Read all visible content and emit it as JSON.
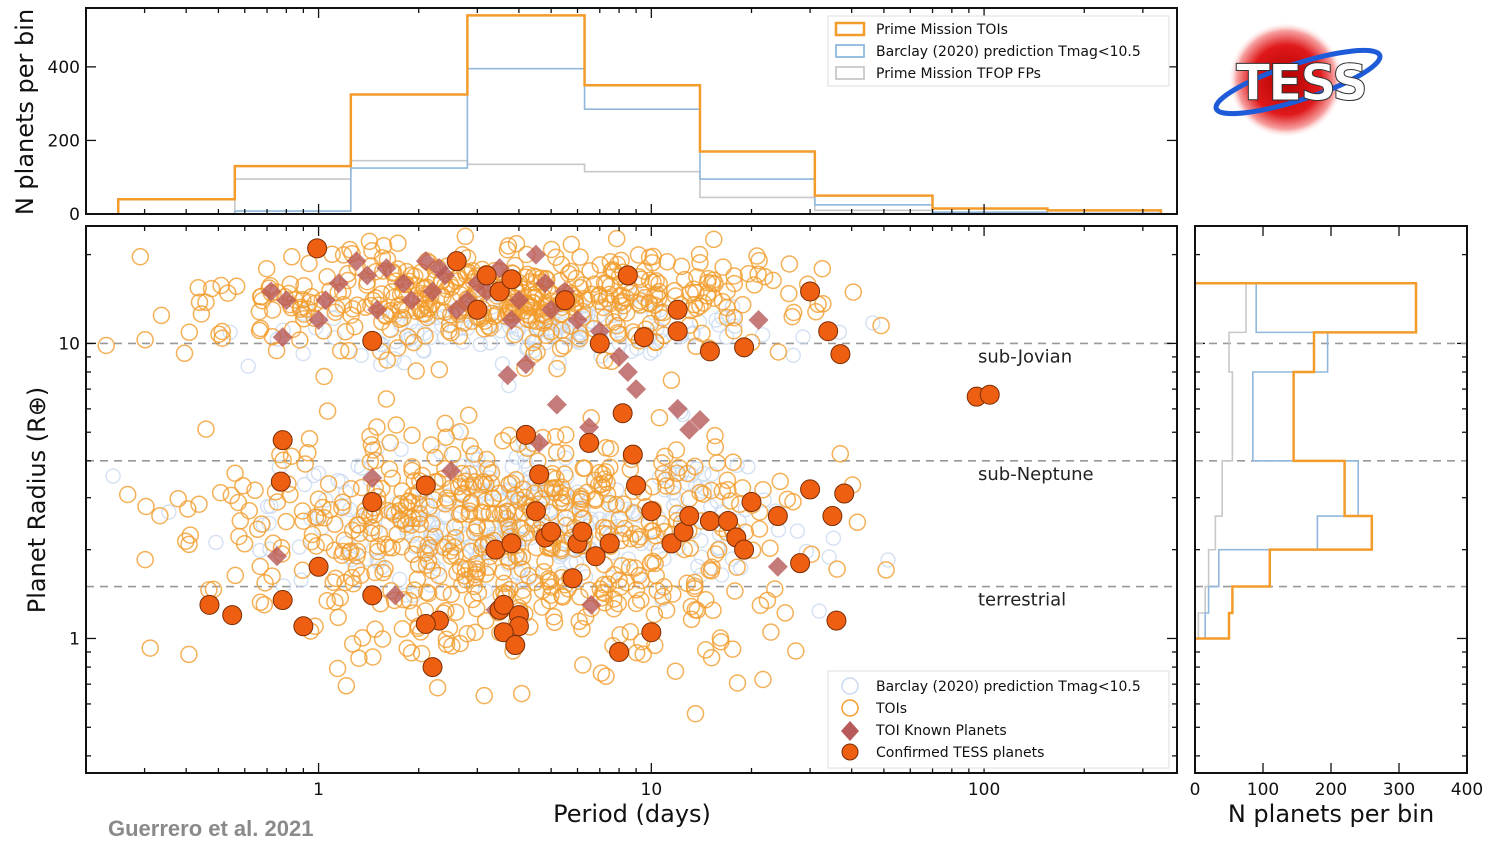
{
  "logo": {
    "text": "TESS"
  },
  "citation": "Guerrero et al. 2021",
  "colors": {
    "toi": "#f39c2c",
    "barclay": "#8fb8dc",
    "barclay_points": "#c9daf0",
    "tfop": "#c8c8c8",
    "known": "#b85a5a",
    "confirmed": "#ee5f12",
    "dashed": "#999999"
  },
  "chart_data": [
    {
      "type": "histogram",
      "panel": "top",
      "xlabel": "",
      "ylabel": "N planets per bin",
      "xscale": "log",
      "xlim": [
        0.2,
        380
      ],
      "ylim": [
        0,
        560
      ],
      "yticks": [
        0,
        200,
        400
      ],
      "legend": {
        "placement": "top-right",
        "entries": [
          "Prime Mission TOIs",
          "Barclay (2020) prediction Tmag<10.5",
          "Prime Mission TFOP FPs"
        ]
      },
      "bin_edges": [
        0.25,
        0.56,
        1.25,
        2.8,
        6.3,
        14,
        31,
        70,
        155,
        340
      ],
      "series": [
        {
          "name": "Prime Mission TOIs",
          "values": [
            40,
            130,
            325,
            540,
            350,
            170,
            50,
            15,
            10
          ]
        },
        {
          "name": "Barclay (2020) prediction Tmag<10.5",
          "values": [
            0,
            8,
            125,
            395,
            285,
            95,
            25,
            5,
            2
          ]
        },
        {
          "name": "Prime Mission TFOP FPs",
          "values": [
            0,
            95,
            145,
            135,
            115,
            45,
            10,
            3,
            0
          ]
        }
      ]
    },
    {
      "type": "scatter",
      "panel": "main",
      "xlabel": "Period (days)",
      "ylabel": "Planet Radius (R⊕)",
      "xscale": "log",
      "yscale": "log",
      "xlim": [
        0.2,
        380
      ],
      "ylim": [
        0.35,
        25
      ],
      "xticks": [
        1,
        10,
        100
      ],
      "yticks": [
        1,
        10
      ],
      "hlines": [
        {
          "y": 10,
          "label": "sub-Jovian"
        },
        {
          "y": 4,
          "label": "sub-Neptune"
        },
        {
          "y": 1.5,
          "label": "terrestrial"
        }
      ],
      "legend": {
        "placement": "bottom-right",
        "entries": [
          "Barclay (2020) prediction Tmag<10.5",
          "TOIs",
          "TOI Known Planets",
          "Confirmed TESS planets"
        ]
      },
      "series": [
        {
          "name": "Barclay (2020) prediction Tmag<10.5",
          "marker": "open-circle",
          "x": [],
          "y": [],
          "distribution": {
            "count": 420,
            "logP_mean": 0.65,
            "logP_sd": 0.38,
            "clusters": [
              {
                "logR_mean": 1.05,
                "logR_sd": 0.05,
                "weight": 0.35
              },
              {
                "logR_mean": 0.4,
                "logR_sd": 0.12,
                "weight": 0.65
              }
            ]
          }
        },
        {
          "name": "TOIs",
          "marker": "open-circle",
          "x": [],
          "y": [],
          "distribution": {
            "count": 1100,
            "logP_mean": 0.55,
            "logP_sd": 0.42,
            "clusters": [
              {
                "logR_mean": 1.15,
                "logR_sd": 0.09,
                "weight": 0.42
              },
              {
                "logR_mean": 0.42,
                "logR_sd": 0.14,
                "weight": 0.46
              },
              {
                "logR_mean": 0.1,
                "logR_sd": 0.12,
                "weight": 0.12
              }
            ]
          }
        },
        {
          "name": "TOI Known Planets",
          "marker": "diamond",
          "x": [
            0.72,
            0.8,
            0.78,
            1.0,
            1.05,
            1.15,
            1.3,
            1.4,
            1.5,
            1.6,
            1.8,
            1.9,
            2.1,
            2.2,
            2.4,
            2.6,
            2.8,
            3.0,
            3.2,
            3.5,
            3.8,
            4.0,
            4.5,
            4.8,
            5.0,
            5.5,
            6.0,
            7.0,
            8.0,
            8.5,
            9.0,
            12.0,
            14.0,
            21.0,
            1.45,
            0.75,
            3.7,
            5.2,
            4.6,
            2.5,
            6.5,
            13.0,
            24.0,
            6.6,
            3.4,
            1.7,
            2.3,
            4.2
          ],
          "y": [
            15,
            14,
            10.5,
            12,
            14,
            16,
            19,
            17,
            13,
            18,
            16,
            14,
            19,
            15,
            17,
            13,
            14,
            16,
            15,
            18,
            12,
            14,
            20,
            16,
            13,
            15,
            12,
            11,
            9,
            8,
            7,
            6,
            5.5,
            12,
            3.5,
            1.9,
            7.8,
            6.2,
            4.6,
            3.7,
            5.2,
            5.1,
            1.75,
            1.3,
            1.25,
            1.4,
            18,
            8.5
          ]
        },
        {
          "name": "Confirmed TESS planets",
          "marker": "filled-circle",
          "x": [
            0.99,
            0.78,
            0.77,
            1.45,
            0.47,
            0.55,
            0.78,
            0.9,
            1.0,
            1.45,
            1.45,
            2.1,
            2.3,
            2.1,
            2.2,
            3.2,
            3.5,
            3.8,
            4.2,
            4.6,
            5.5,
            6.5,
            7.0,
            8.5,
            9.5,
            12,
            12,
            15,
            19,
            30,
            34,
            37,
            95,
            104,
            3.5,
            3.6,
            4.0,
            3.4,
            3.8,
            4.5,
            4.8,
            5.0,
            5.8,
            6.0,
            6.2,
            6.8,
            7.5,
            8.2,
            8.8,
            9.0,
            10.0,
            11.5,
            12.5,
            13.0,
            15.0,
            17.0,
            18.0,
            19.0,
            20.0,
            24.0,
            28.0,
            30.0,
            35.0,
            38.0,
            4.0,
            3.6,
            3.9,
            8.0,
            10.0,
            36.0,
            2.6,
            3.0
          ],
          "y": [
            21,
            4.7,
            3.4,
            10.2,
            1.3,
            1.2,
            1.35,
            1.1,
            1.75,
            2.9,
            1.4,
            3.3,
            1.15,
            1.12,
            0.8,
            17,
            15,
            16.5,
            4.9,
            3.6,
            14,
            4.6,
            10,
            17,
            10.5,
            13,
            11,
            9.4,
            9.7,
            15,
            11,
            9.2,
            6.6,
            6.7,
            1.25,
            1.3,
            1.2,
            2.0,
            2.1,
            2.7,
            2.2,
            2.3,
            1.6,
            2.1,
            2.3,
            1.9,
            2.1,
            5.8,
            4.2,
            3.3,
            2.7,
            2.1,
            2.3,
            2.6,
            2.5,
            2.5,
            2.2,
            2.0,
            2.9,
            2.6,
            1.8,
            3.2,
            2.6,
            3.1,
            1.1,
            1.05,
            0.95,
            0.9,
            1.05,
            1.15,
            19,
            13
          ]
        }
      ]
    },
    {
      "type": "histogram",
      "panel": "right",
      "orientation": "horizontal",
      "xlabel": "N planets per bin",
      "ylabel": "",
      "xlim": [
        0,
        400
      ],
      "xticks": [
        0,
        100,
        200,
        300,
        400
      ],
      "yscale": "log",
      "ylim": [
        0.35,
        25
      ],
      "bin_edges": [
        1.0,
        1.22,
        1.5,
        2.0,
        2.6,
        4.0,
        8.0,
        10.9,
        16
      ],
      "series": [
        {
          "name": "Prime Mission TOIs",
          "values": [
            50,
            55,
            110,
            260,
            220,
            145,
            175,
            325
          ]
        },
        {
          "name": "Barclay (2020) prediction Tmag<10.5",
          "values": [
            15,
            20,
            35,
            180,
            240,
            85,
            195,
            90
          ]
        },
        {
          "name": "Prime Mission TFOP FPs",
          "values": [
            5,
            15,
            20,
            30,
            40,
            55,
            50,
            75
          ]
        }
      ]
    }
  ]
}
